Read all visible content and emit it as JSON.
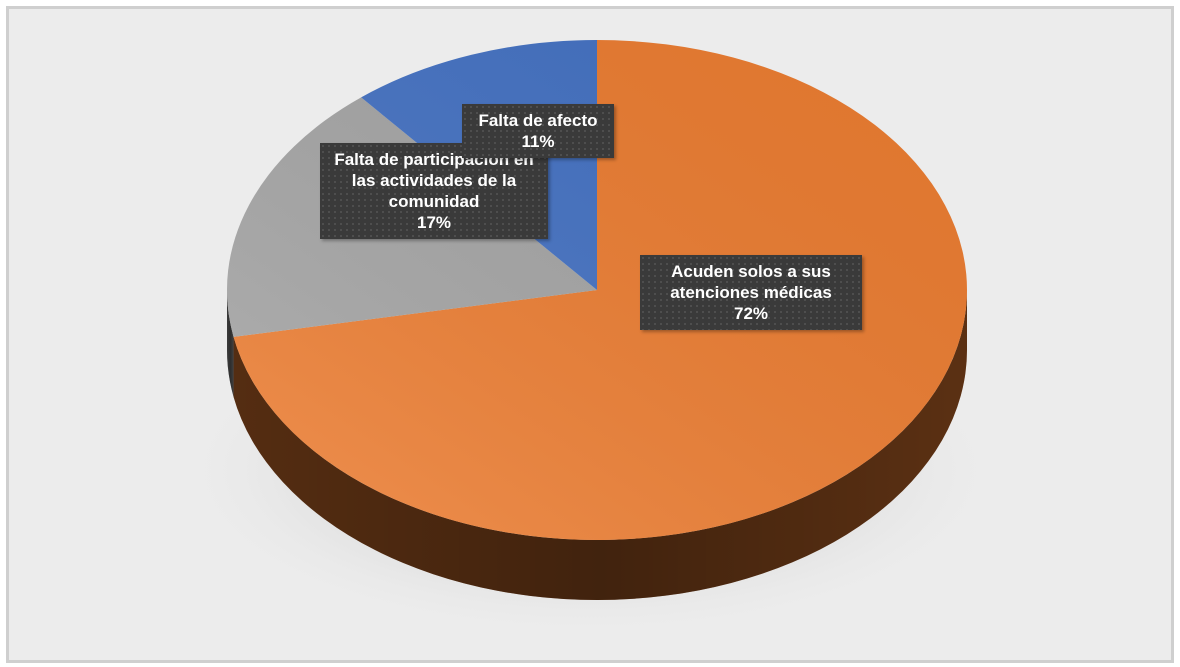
{
  "chart_data": {
    "type": "pie",
    "categories": [
      "Acuden solos a sus atenciones médicas",
      "Falta de participación en las actividades de la comunidad",
      "Falta de afecto"
    ],
    "values": [
      72,
      17,
      11
    ],
    "value_labels": [
      "72%",
      "17%",
      "11%"
    ],
    "colors": [
      "#ed7d31",
      "#a5a5a5",
      "#4472c4"
    ]
  }
}
